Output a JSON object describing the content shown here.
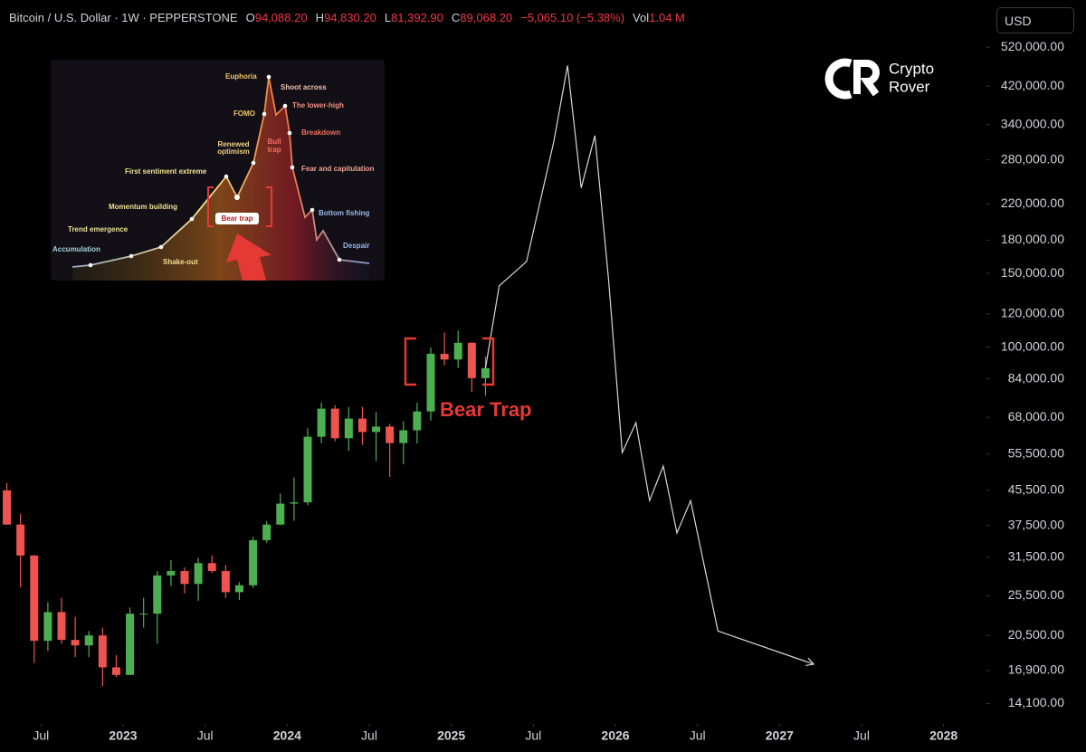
{
  "chart_data": {
    "type": "candlestick",
    "header": {
      "symbol": "Bitcoin / U.S. Dollar · 1W · PEPPERSTONE",
      "fields": [
        {
          "key": "O",
          "value": 94088.2,
          "label": "94,088.20"
        },
        {
          "key": "H",
          "value": 94830.2,
          "label": "94,830.20"
        },
        {
          "key": "L",
          "value": 81392.9,
          "label": "81,392.90"
        },
        {
          "key": "C",
          "value": 89068.2,
          "label": "89,068.20"
        }
      ],
      "change": "−5,065.10 (−5.38%)",
      "volume_key": "Vol",
      "volume": "1.04 M"
    },
    "currency": "USD",
    "brand": [
      "Crypto",
      "Rover"
    ],
    "annotation": "Bear Trap",
    "log_scale": true,
    "up_color": "#4caf50",
    "down_color": "#ef5350",
    "x": [
      "2022-04",
      "2022-05",
      "2022-06",
      "2022-07",
      "2022-08",
      "2022-09",
      "2022-10",
      "2022-11",
      "2022-12",
      "2023-01",
      "2023-02",
      "2023-03",
      "2023-04",
      "2023-05",
      "2023-06",
      "2023-07",
      "2023-08",
      "2023-09",
      "2023-10",
      "2023-11",
      "2023-12",
      "2024-01",
      "2024-02",
      "2024-03",
      "2024-04",
      "2024-05",
      "2024-06",
      "2024-07",
      "2024-08",
      "2024-09",
      "2024-10",
      "2024-11",
      "2024-12",
      "2025-01",
      "2025-02",
      "2025-03"
    ],
    "open": [
      45500,
      37700,
      31800,
      19900,
      23300,
      20000,
      19400,
      20500,
      17200,
      16500,
      23100,
      23100,
      28500,
      29200,
      27200,
      30500,
      29200,
      26000,
      27000,
      34600,
      37700,
      42300,
      42600,
      61100,
      71300,
      60600,
      67500,
      62700,
      64600,
      59000,
      63300,
      70200,
      96400,
      93400,
      102400,
      84300
    ],
    "high": [
      47400,
      40000,
      31900,
      24600,
      25200,
      22700,
      21000,
      21400,
      18400,
      23900,
      25200,
      29200,
      31000,
      29800,
      31400,
      31800,
      30200,
      27500,
      35200,
      38400,
      44700,
      48900,
      64000,
      73800,
      72700,
      71900,
      72000,
      70000,
      65600,
      66500,
      73600,
      99800,
      108300,
      109400,
      102700,
      95000
    ],
    "low": [
      37700,
      26700,
      17600,
      18800,
      19600,
      18200,
      18200,
      15500,
      16300,
      16500,
      21400,
      19600,
      26900,
      25800,
      24800,
      28900,
      25200,
      24900,
      26600,
      34100,
      37600,
      38500,
      41900,
      59000,
      59600,
      56500,
      58400,
      53500,
      49000,
      52500,
      58900,
      66800,
      90500,
      89200,
      78200,
      76600
    ],
    "close": [
      37700,
      31800,
      19900,
      23300,
      20000,
      19400,
      20500,
      17200,
      16500,
      23100,
      23100,
      28500,
      29200,
      27200,
      30500,
      29200,
      26000,
      27000,
      34600,
      37700,
      42300,
      42600,
      61100,
      71300,
      60600,
      67500,
      62700,
      64600,
      59000,
      63300,
      70200,
      96400,
      93400,
      102400,
      84300,
      89068.2
    ],
    "projection": {
      "color": "#d8d8d8",
      "x": [
        "2025-03",
        "2025-04",
        "2025-06",
        "2025-08",
        "2025-09",
        "2025-10",
        "2025-11",
        "2025-12",
        "2026-01",
        "2026-02",
        "2026-03",
        "2026-04",
        "2026-05",
        "2026-06",
        "2026-08",
        "2027-03"
      ],
      "values": [
        89000,
        140000,
        160000,
        310000,
        470000,
        240000,
        320000,
        145000,
        56000,
        66000,
        43000,
        52000,
        36000,
        43000,
        21000,
        17500
      ]
    },
    "xlim": [
      "2022-04",
      "2028-04"
    ],
    "xticks": [
      {
        "value": "2022-07",
        "label": "Jul"
      },
      {
        "value": "2023-01",
        "label": "2023"
      },
      {
        "value": "2023-07",
        "label": "Jul"
      },
      {
        "value": "2024-01",
        "label": "2024"
      },
      {
        "value": "2024-07",
        "label": "Jul"
      },
      {
        "value": "2025-01",
        "label": "2025"
      },
      {
        "value": "2025-07",
        "label": "Jul"
      },
      {
        "value": "2026-01",
        "label": "2026"
      },
      {
        "value": "2026-07",
        "label": "Jul"
      },
      {
        "value": "2027-01",
        "label": "2027"
      },
      {
        "value": "2027-07",
        "label": "Jul"
      },
      {
        "value": "2028-01",
        "label": "2028"
      }
    ],
    "ylim": [
      12600,
      674000
    ],
    "yticks": [
      {
        "value": 520000,
        "label": "520,000.00"
      },
      {
        "value": 420000,
        "label": "420,000.00"
      },
      {
        "value": 340000,
        "label": "340,000.00"
      },
      {
        "value": 280000,
        "label": "280,000.00"
      },
      {
        "value": 220000,
        "label": "220,000.00"
      },
      {
        "value": 180000,
        "label": "180,000.00"
      },
      {
        "value": 150000,
        "label": "150,000.00"
      },
      {
        "value": 120000,
        "label": "120,000.00"
      },
      {
        "value": 100000,
        "label": "100,000.00"
      },
      {
        "value": 84000,
        "label": "84,000.00"
      },
      {
        "value": 68000,
        "label": "68,000.00"
      },
      {
        "value": 55500,
        "label": "55,500.00"
      },
      {
        "value": 45500,
        "label": "45,500.00"
      },
      {
        "value": 37500,
        "label": "37,500.00"
      },
      {
        "value": 31500,
        "label": "31,500.00"
      },
      {
        "value": 25500,
        "label": "25,500.00"
      },
      {
        "value": 20500,
        "label": "20,500.00"
      },
      {
        "value": 16900,
        "label": "16,900.00"
      },
      {
        "value": 14100,
        "label": "14,100.00"
      }
    ],
    "inset": {
      "labels": [
        "Euphoria",
        "Shoot across",
        "FOMO",
        "The lower-high",
        "Breakdown",
        "Renewed",
        "optimism",
        "Bull",
        "trap",
        "First sentiment extreme",
        "Fear and capitulation",
        "Momentum building",
        "Bear trap",
        "Bottom fishing",
        "Trend emergence",
        "Accumulation",
        "Shake-out",
        "Despair"
      ]
    }
  }
}
